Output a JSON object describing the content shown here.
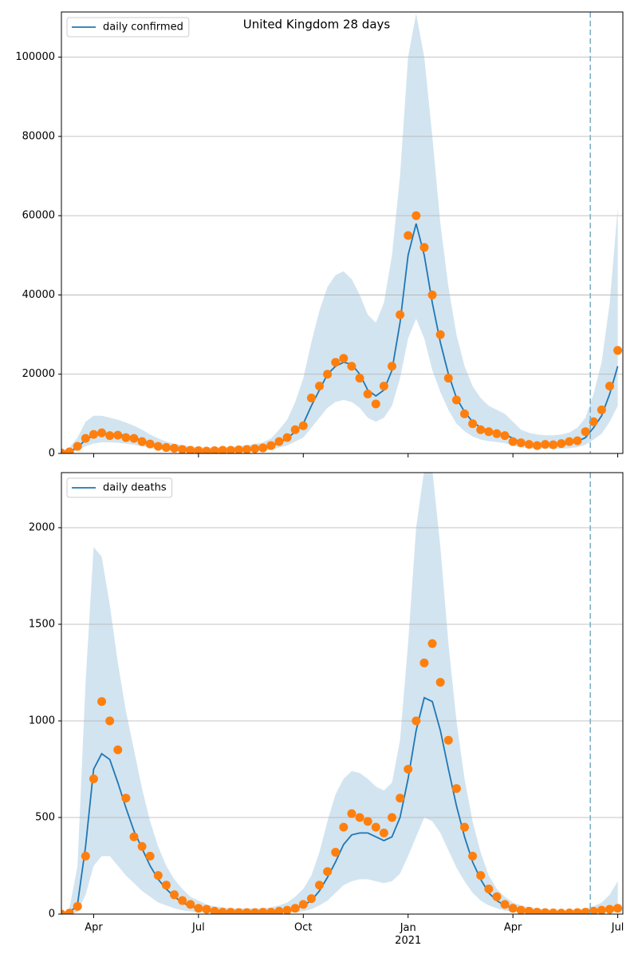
{
  "chart_data": [
    {
      "type": "line",
      "title": "United Kingdom 28 days",
      "sharex": true,
      "legend": "upper left",
      "grid": true,
      "ylim": [
        0,
        111400
      ],
      "yticks": [
        0,
        20000,
        40000,
        60000,
        80000,
        100000
      ],
      "series": [
        {
          "name": "daily confirmed",
          "color": "#1f77b4",
          "values": [
            200,
            500,
            1500,
            3500,
            4500,
            5000,
            5000,
            4800,
            4500,
            4000,
            3300,
            2600,
            2000,
            1600,
            1300,
            1100,
            900,
            800,
            700,
            700,
            750,
            800,
            900,
            1000,
            1100,
            1300,
            1700,
            2800,
            3800,
            5500,
            7500,
            12000,
            16000,
            20000,
            22000,
            23000,
            22500,
            20000,
            16000,
            14500,
            16000,
            21000,
            33000,
            50000,
            58000,
            50000,
            38000,
            28000,
            20000,
            14000,
            10500,
            8000,
            6500,
            5700,
            5300,
            4800,
            3800,
            2800,
            2500,
            2300,
            2200,
            2200,
            2300,
            2500,
            3000,
            4000,
            6500,
            9500,
            15000,
            22000
          ]
        }
      ],
      "points": {
        "color": "#ff7f0e",
        "values": [
          100,
          400,
          1800,
          3800,
          4800,
          5200,
          4500,
          4600,
          4000,
          3800,
          3000,
          2400,
          1800,
          1500,
          1300,
          1000,
          800,
          700,
          600,
          700,
          800,
          800,
          900,
          1000,
          1200,
          1400,
          2000,
          3000,
          4000,
          6000,
          7000,
          14000,
          17000,
          20000,
          23000,
          24000,
          22000,
          19000,
          15000,
          12500,
          17000,
          22000,
          35000,
          55000,
          60000,
          52000,
          40000,
          30000,
          19000,
          13500,
          10000,
          7500,
          6000,
          5500,
          5000,
          4500,
          3000,
          2700,
          2300,
          2000,
          2300,
          2200,
          2500,
          3000,
          3200,
          5500,
          8000,
          11000,
          17000,
          26000
        ]
      },
      "band": {
        "color": "#1f77b4",
        "hi": [
          600,
          1500,
          4000,
          8000,
          9500,
          9500,
          9000,
          8500,
          7800,
          7000,
          6000,
          4800,
          3800,
          3000,
          2500,
          2100,
          1800,
          1600,
          1500,
          1500,
          1600,
          1700,
          1900,
          2100,
          2400,
          2800,
          3800,
          6000,
          8500,
          13000,
          19000,
          28000,
          36000,
          42000,
          45000,
          46000,
          44000,
          40000,
          35000,
          33000,
          38000,
          50000,
          70000,
          100000,
          111000,
          100000,
          80000,
          58000,
          42000,
          30000,
          22000,
          17000,
          14000,
          12000,
          11000,
          10000,
          8000,
          6000,
          5200,
          4800,
          4600,
          4600,
          4800,
          5300,
          6500,
          9000,
          15000,
          23000,
          38000,
          62000
        ],
        "lo": [
          50,
          200,
          700,
          1800,
          2500,
          2800,
          2800,
          2700,
          2500,
          2200,
          1800,
          1400,
          1100,
          900,
          700,
          600,
          500,
          450,
          400,
          400,
          400,
          450,
          500,
          550,
          600,
          700,
          900,
          1500,
          2000,
          3000,
          4000,
          6500,
          9000,
          11500,
          13000,
          13500,
          13000,
          11500,
          9000,
          8000,
          9000,
          12000,
          19000,
          29000,
          34000,
          29000,
          21000,
          15500,
          11000,
          7500,
          5600,
          4300,
          3500,
          3100,
          2900,
          2600,
          2000,
          1500,
          1300,
          1200,
          1200,
          1200,
          1200,
          1300,
          1600,
          2200,
          3500,
          5000,
          8000,
          12000
        ]
      },
      "vline": {
        "x": 65.6,
        "color": "#7fb0c8"
      }
    },
    {
      "type": "line",
      "sharex": true,
      "legend": "upper left",
      "grid": true,
      "categories": [
        null,
        null,
        null,
        null,
        "Apr",
        null,
        null,
        null,
        null,
        null,
        null,
        null,
        null,
        null,
        null,
        null,
        null,
        "Jul",
        null,
        null,
        null,
        null,
        null,
        null,
        null,
        null,
        null,
        null,
        null,
        null,
        "Oct",
        null,
        null,
        null,
        null,
        null,
        null,
        null,
        null,
        null,
        null,
        null,
        null,
        "Jan\n2021",
        null,
        null,
        null,
        null,
        null,
        null,
        null,
        null,
        null,
        null,
        null,
        null,
        "Apr",
        null,
        null,
        null,
        null,
        null,
        null,
        null,
        null,
        null,
        null,
        null,
        null,
        "Jul"
      ],
      "ylim": [
        0,
        2285
      ],
      "yticks": [
        0,
        500,
        1000,
        1500,
        2000
      ],
      "series": [
        {
          "name": "daily deaths",
          "color": "#1f77b4",
          "values": [
            0,
            5,
            50,
            350,
            750,
            830,
            800,
            680,
            550,
            430,
            340,
            250,
            180,
            130,
            90,
            60,
            40,
            30,
            20,
            15,
            12,
            10,
            10,
            10,
            10,
            10,
            12,
            15,
            20,
            30,
            45,
            70,
            120,
            190,
            270,
            360,
            410,
            420,
            420,
            400,
            380,
            400,
            500,
            700,
            950,
            1120,
            1100,
            950,
            750,
            560,
            400,
            270,
            180,
            110,
            70,
            45,
            30,
            20,
            15,
            10,
            8,
            7,
            6,
            6,
            8,
            10,
            14,
            18,
            25,
            40
          ]
        }
      ],
      "points": {
        "color": "#ff7f0e",
        "values": [
          0,
          5,
          40,
          300,
          700,
          1100,
          1000,
          850,
          600,
          400,
          350,
          300,
          200,
          150,
          100,
          70,
          50,
          30,
          25,
          15,
          10,
          10,
          8,
          8,
          8,
          10,
          10,
          15,
          20,
          30,
          50,
          80,
          150,
          220,
          320,
          450,
          520,
          500,
          480,
          450,
          420,
          500,
          600,
          750,
          1000,
          1300,
          1400,
          1200,
          900,
          650,
          450,
          300,
          200,
          130,
          90,
          50,
          30,
          20,
          15,
          10,
          8,
          6,
          5,
          6,
          8,
          10,
          15,
          20,
          25,
          30
        ]
      },
      "band": {
        "color": "#1f77b4",
        "hi": [
          0,
          30,
          250,
          1200,
          1900,
          1850,
          1600,
          1300,
          1050,
          850,
          650,
          480,
          350,
          250,
          180,
          130,
          90,
          70,
          50,
          40,
          35,
          30,
          30,
          30,
          30,
          30,
          35,
          45,
          60,
          90,
          130,
          200,
          320,
          480,
          620,
          700,
          740,
          730,
          700,
          660,
          640,
          680,
          900,
          1400,
          2000,
          2300,
          2300,
          1900,
          1400,
          1000,
          700,
          480,
          320,
          200,
          130,
          90,
          60,
          45,
          35,
          30,
          25,
          22,
          20,
          20,
          25,
          30,
          40,
          60,
          100,
          170
        ],
        "lo": [
          0,
          0,
          10,
          100,
          250,
          300,
          300,
          250,
          200,
          160,
          120,
          90,
          60,
          45,
          30,
          20,
          14,
          10,
          7,
          5,
          4,
          3,
          3,
          3,
          3,
          3,
          4,
          5,
          7,
          10,
          15,
          25,
          45,
          70,
          110,
          150,
          170,
          180,
          180,
          170,
          160,
          170,
          210,
          300,
          400,
          500,
          480,
          420,
          330,
          240,
          170,
          110,
          70,
          45,
          30,
          18,
          12,
          8,
          6,
          4,
          3,
          3,
          2,
          2,
          3,
          4,
          5,
          7,
          10,
          15
        ]
      },
      "vline": {
        "x": 65.6,
        "color": "#7fb0c8"
      }
    }
  ]
}
